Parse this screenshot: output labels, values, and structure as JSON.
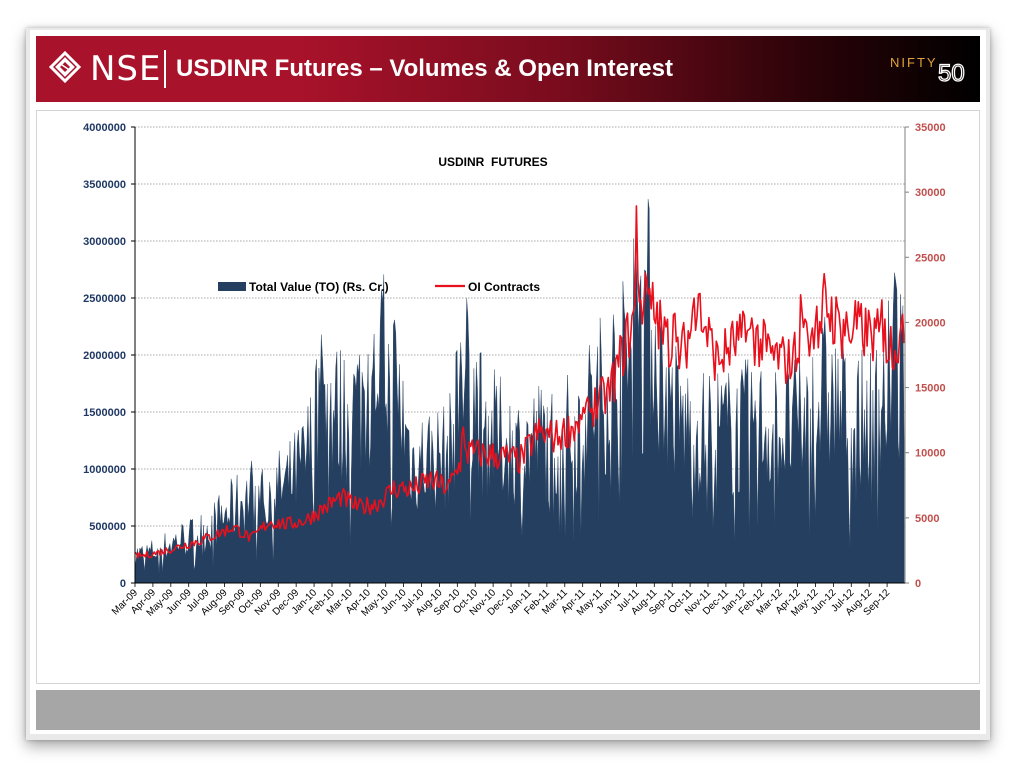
{
  "header": {
    "brand": "NSE",
    "title": "USDINR Futures – Volumes & Open Interest",
    "partner_logo_text": "NIFTY",
    "partner_logo_number": "50"
  },
  "colors": {
    "header_red": "#a8122a",
    "area_fill": "#243f60",
    "oi_line": "#e8101c",
    "left_axis_text": "#1f3864",
    "right_axis_text": "#c0504d",
    "footer": "#a6a6a6"
  },
  "chart_data": {
    "type": "area",
    "title": "USDINR  FUTURES",
    "categories": [
      "Mar-09",
      "Apr-09",
      "May-09",
      "Jun-09",
      "Jul-09",
      "Aug-09",
      "Sep-09",
      "Oct-09",
      "Nov-09",
      "Dec-09",
      "Jan-10",
      "Feb-10",
      "Mar-10",
      "Apr-10",
      "May-10",
      "Jun-10",
      "Jul-10",
      "Aug-10",
      "Sep-10",
      "Oct-10",
      "Nov-10",
      "Dec-10",
      "Jan-11",
      "Feb-11",
      "Mar-11",
      "Apr-11",
      "May-11",
      "Jun-11",
      "Jul-11",
      "Aug-11",
      "Sep-11",
      "Oct-11",
      "Nov-11",
      "Dec-11",
      "Jan-12",
      "Feb-12",
      "Mar-12",
      "Apr-12",
      "May-12",
      "Jun-12",
      "Jul-12",
      "Aug-12",
      "Sep-12"
    ],
    "y_left": {
      "min": 0,
      "max": 4000000,
      "ticks": [
        "0",
        "500000",
        "1000000",
        "1500000",
        "2000000",
        "2500000",
        "3000000",
        "3500000",
        "4000000"
      ]
    },
    "y_right": {
      "min": 0,
      "max": 35000,
      "ticks": [
        "0",
        "5000",
        "10000",
        "15000",
        "20000",
        "25000",
        "30000",
        "35000"
      ]
    },
    "grid": true,
    "legend_position": "top-left",
    "series": [
      {
        "name": "Total Value (TO) (Rs. Cr.)",
        "type": "area",
        "axis": "left",
        "values": [
          250000,
          300000,
          380000,
          420000,
          520000,
          650000,
          780000,
          780000,
          850000,
          1050000,
          1600000,
          1450000,
          1550000,
          2000000,
          1750000,
          1050000,
          1100000,
          1100000,
          1850000,
          1350000,
          1250000,
          1150000,
          1250000,
          1250000,
          1300000,
          1550000,
          1750000,
          1900000,
          2500000,
          1700000,
          1400000,
          1300000,
          1350000,
          1300000,
          1400000,
          1350000,
          1350000,
          1400000,
          1650000,
          1500000,
          1400000,
          1500000,
          1900000
        ],
        "peaks": [
          {
            "x": 7.1,
            "y": 1100000
          },
          {
            "x": 10.4,
            "y": 2200000
          },
          {
            "x": 13.3,
            "y": 2450000
          },
          {
            "x": 18.2,
            "y": 2470000
          },
          {
            "x": 28.0,
            "y": 3100000
          },
          {
            "x": 42.4,
            "y": 3000000
          }
        ]
      },
      {
        "name": "OI Contracts",
        "type": "line",
        "axis": "right",
        "values": [
          2100,
          2400,
          2800,
          3200,
          3700,
          4300,
          3400,
          4700,
          4500,
          4800,
          5700,
          6600,
          5800,
          6100,
          7300,
          7200,
          7900,
          7300,
          10000,
          9900,
          9700,
          9400,
          11500,
          11200,
          12000,
          13500,
          14600,
          18900,
          22500,
          19000,
          17500,
          21000,
          17000,
          18500,
          19000,
          17500,
          17000,
          18500,
          21500,
          19300,
          19500,
          18800,
          18500
        ],
        "peaks": [
          {
            "x": 18.3,
            "y": 14200
          },
          {
            "x": 25.0,
            "y": 15700
          },
          {
            "x": 28.0,
            "y": 33200
          },
          {
            "x": 28.6,
            "y": 28700
          },
          {
            "x": 30.1,
            "y": 26500
          },
          {
            "x": 31.2,
            "y": 27500
          },
          {
            "x": 34.4,
            "y": 22500
          },
          {
            "x": 37.2,
            "y": 26300
          },
          {
            "x": 38.4,
            "y": 24800
          },
          {
            "x": 39.7,
            "y": 24600
          },
          {
            "x": 41.7,
            "y": 25400
          }
        ]
      }
    ]
  }
}
